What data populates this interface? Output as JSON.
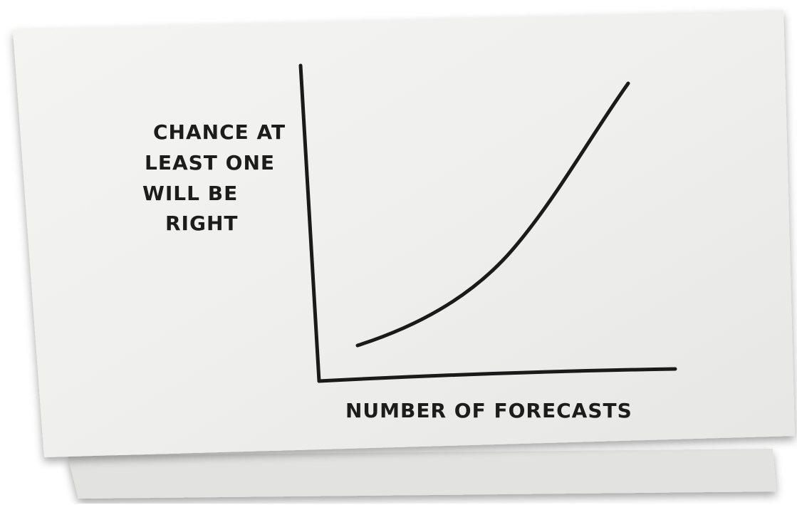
{
  "y_axis_label": [
    "CHANCE AT",
    "LEAST ONE",
    "WILL BE",
    "RIGHT"
  ],
  "x_axis_label": "NUMBER OF FORECASTS"
}
